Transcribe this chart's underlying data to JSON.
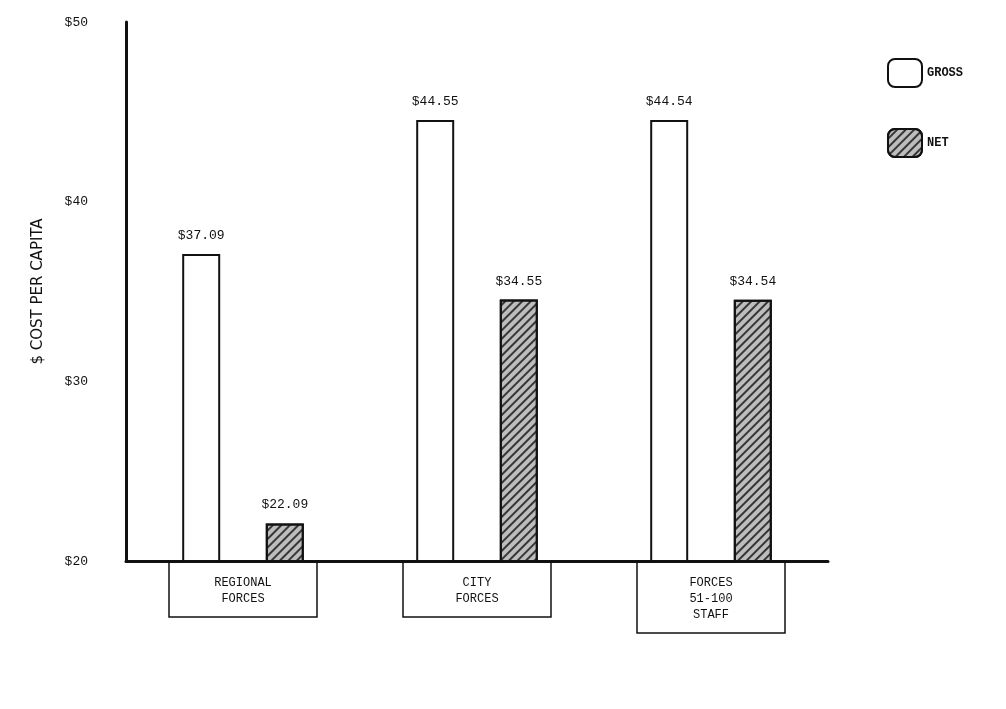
{
  "chart_data": {
    "type": "bar",
    "ylabel": "$ COST PER CAPITA",
    "categories": [
      "REGIONAL\nFORCES",
      "CITY\nFORCES",
      "FORCES\n51-100\nSTAFF"
    ],
    "series": [
      {
        "name": "GROSS",
        "color": "#ffffff",
        "values": [
          37.09,
          44.55,
          44.54
        ],
        "value_labels": [
          "$37.09",
          "$44.55",
          "$44.54"
        ]
      },
      {
        "name": "NET",
        "color": "#bdbdbd",
        "values": [
          22.09,
          34.55,
          34.54
        ],
        "value_labels": [
          "$22.09",
          "$34.55",
          "$34.54"
        ]
      }
    ],
    "ylim": [
      20,
      50
    ],
    "yticks": [
      {
        "value": 20,
        "label": "$20"
      },
      {
        "value": 30,
        "label": "$30"
      },
      {
        "value": 40,
        "label": "$40"
      },
      {
        "value": 50,
        "label": "$50"
      }
    ],
    "grid": false,
    "legend": "top right"
  }
}
